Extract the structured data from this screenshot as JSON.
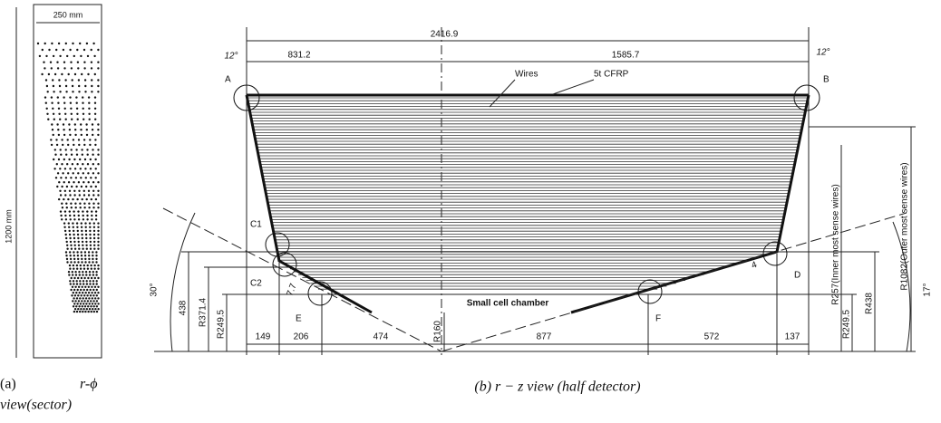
{
  "panel_a": {
    "width_label": "250 mm",
    "height_label": "1200 mm",
    "caption_tag": "(a)",
    "caption_line1": "r-ϕ",
    "caption_line2": "view(sector)"
  },
  "panel_b": {
    "caption": "(b) r − z view (half detector)",
    "top_dims": {
      "total": "2416.9",
      "left": "831.2",
      "right": "1585.7",
      "angle_left": "12°",
      "angle_right": "12°"
    },
    "points": {
      "a": "A",
      "b": "B",
      "c1": "C1",
      "c2": "C2",
      "d": "D",
      "e": "E",
      "f": "F"
    },
    "labels": {
      "wires": "Wires",
      "cfrp": "5t CFRP",
      "small_cell": "Small cell chamber",
      "angle_left": "30°",
      "angle_right": "17°",
      "thick_left": "7.7",
      "thick_right": "4"
    },
    "bottom_dims": [
      "149",
      "206",
      "474",
      "877",
      "572",
      "137"
    ],
    "left_dims": [
      "438",
      "R371.4",
      "R249.5"
    ],
    "right_dims": {
      "r160": "R160",
      "r249": "R249.5",
      "r438": "R438",
      "r257": "R257(Inner most sense wires)",
      "r1082": "R1082(Outer most sense wires)"
    }
  }
}
